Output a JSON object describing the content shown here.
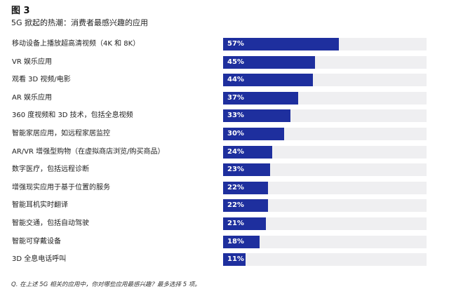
{
  "figure_label": "图 3",
  "subtitle": "5G 掀起的热潮：消费者最感兴趣的应用",
  "footnote": "Q. 在上述 5G 相关的应用中，你对哪些应用最感兴趣？最多选择 5 项。",
  "chart_data": {
    "type": "bar",
    "orientation": "horizontal",
    "unit": "%",
    "xlim": [
      0,
      100
    ],
    "grid": false,
    "categories": [
      "移动设备上播放超高清视频（4K 和 8K）",
      "VR 娱乐应用",
      "观看 3D 视频/电影",
      "AR 娱乐应用",
      "360 度视频和 3D 技术，包括全息视频",
      "智能家居应用，如远程家居监控",
      "AR/VR 增强型购物（在虚拟商店浏览/购买商品）",
      "数字医疗，包括远程诊断",
      "增强现实应用于基于位置的服务",
      "智能耳机实时翻译",
      "智能交通，包括自动驾驶",
      "智能可穿戴设备",
      "3D 全息电话呼叫"
    ],
    "values": [
      57,
      45,
      44,
      37,
      33,
      30,
      24,
      23,
      22,
      22,
      21,
      18,
      11
    ],
    "value_labels": [
      "57%",
      "45%",
      "44%",
      "37%",
      "33%",
      "30%",
      "24%",
      "23%",
      "22%",
      "22%",
      "21%",
      "18%",
      "11%"
    ],
    "colors": {
      "bar": "#1e2f9e",
      "track": "#efeff1",
      "value_text": "#ffffff"
    }
  }
}
